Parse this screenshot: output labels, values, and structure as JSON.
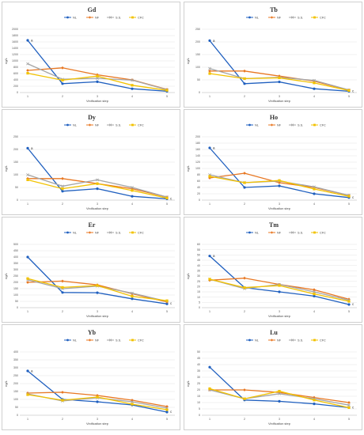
{
  "colors": {
    "NL": "#1f5fbf",
    "NF": "#e87722",
    "S.S.": "#a5a5a5",
    "CFC": "#f2c200"
  },
  "chart_data": [
    {
      "type": "line",
      "title": "Gd",
      "xlabel": "Vinification step",
      "ylabel": "ng/L",
      "x": [
        1,
        2,
        3,
        4,
        5
      ],
      "ylim": [
        0,
        2000
      ],
      "yticks": [
        0,
        200,
        400,
        600,
        800,
        1000,
        1200,
        1400,
        1600,
        1800,
        2000
      ],
      "series": [
        {
          "name": "NL",
          "values": [
            1650,
            280,
            340,
            120,
            40
          ]
        },
        {
          "name": "NF",
          "values": [
            700,
            780,
            560,
            400,
            100
          ]
        },
        {
          "name": "S.S.",
          "values": [
            910,
            420,
            450,
            390,
            90
          ]
        },
        {
          "name": "CFC",
          "values": [
            610,
            390,
            520,
            230,
            70
          ]
        }
      ],
      "significance": [
        "a",
        "",
        "",
        "",
        ""
      ]
    },
    {
      "type": "line",
      "title": "Tb",
      "xlabel": "Vinification step",
      "ylabel": "ng/L",
      "x": [
        1,
        2,
        3,
        4,
        5
      ],
      "ylim": [
        0,
        250
      ],
      "yticks": [
        0,
        50,
        100,
        150,
        200,
        250
      ],
      "series": [
        {
          "name": "NL",
          "values": [
            205,
            35,
            42,
            15,
            5
          ]
        },
        {
          "name": "NF",
          "values": [
            85,
            85,
            65,
            45,
            10
          ]
        },
        {
          "name": "S.S.",
          "values": [
            95,
            55,
            60,
            48,
            10
          ]
        },
        {
          "name": "CFC",
          "values": [
            75,
            55,
            58,
            38,
            8
          ]
        }
      ],
      "significance": [
        "a",
        "",
        "",
        "",
        "c"
      ]
    },
    {
      "type": "line",
      "title": "Dy",
      "xlabel": "Vinification step",
      "ylabel": "ng/L",
      "x": [
        1,
        2,
        3,
        4,
        5
      ],
      "ylim": [
        0,
        250
      ],
      "yticks": [
        0,
        50,
        100,
        150,
        200,
        250
      ],
      "series": [
        {
          "name": "NL",
          "values": [
            205,
            35,
            45,
            15,
            5
          ]
        },
        {
          "name": "NF",
          "values": [
            85,
            85,
            65,
            45,
            12
          ]
        },
        {
          "name": "S.S.",
          "values": [
            100,
            55,
            80,
            50,
            12
          ]
        },
        {
          "name": "CFC",
          "values": [
            80,
            45,
            65,
            38,
            8
          ]
        }
      ],
      "significance": [
        "a",
        "",
        "",
        "",
        "c"
      ]
    },
    {
      "type": "line",
      "title": "Ho",
      "xlabel": "Vinification step",
      "ylabel": "ng/L",
      "x": [
        1,
        2,
        3,
        4,
        5
      ],
      "ylim": [
        0,
        200
      ],
      "yticks": [
        0,
        20,
        40,
        60,
        80,
        100,
        120,
        140,
        160,
        180,
        200
      ],
      "series": [
        {
          "name": "NL",
          "values": [
            165,
            40,
            45,
            20,
            8
          ]
        },
        {
          "name": "NF",
          "values": [
            70,
            85,
            55,
            40,
            15
          ]
        },
        {
          "name": "S.S.",
          "values": [
            80,
            55,
            60,
            42,
            15
          ]
        },
        {
          "name": "CFC",
          "values": [
            75,
            55,
            62,
            35,
            12
          ]
        }
      ],
      "significance": [
        "a",
        "",
        "",
        "",
        "c"
      ]
    },
    {
      "type": "line",
      "title": "Er",
      "xlabel": "Vinification step",
      "ylabel": "ng/L",
      "x": [
        1,
        2,
        3,
        4,
        5
      ],
      "ylim": [
        0,
        500
      ],
      "yticks": [
        0,
        50,
        100,
        150,
        200,
        250,
        300,
        350,
        400,
        450,
        500
      ],
      "series": [
        {
          "name": "NL",
          "values": [
            400,
            120,
            118,
            70,
            30
          ]
        },
        {
          "name": "NF",
          "values": [
            200,
            210,
            180,
            110,
            45
          ]
        },
        {
          "name": "S.S.",
          "values": [
            220,
            150,
            170,
            115,
            50
          ]
        },
        {
          "name": "CFC",
          "values": [
            230,
            160,
            175,
            90,
            55
          ]
        }
      ],
      "significance": [
        "",
        "",
        "",
        "",
        "c"
      ]
    },
    {
      "type": "line",
      "title": "Tm",
      "xlabel": "Vinification step",
      "ylabel": "ng/L",
      "x": [
        1,
        2,
        3,
        4,
        5
      ],
      "ylim": [
        0,
        60
      ],
      "yticks": [
        0,
        5,
        10,
        15,
        20,
        25,
        30,
        35,
        40,
        45,
        50,
        55,
        60
      ],
      "series": [
        {
          "name": "NL",
          "values": [
            49,
            19,
            15,
            11,
            3
          ]
        },
        {
          "name": "NF",
          "values": [
            26,
            28,
            22,
            17,
            8
          ]
        },
        {
          "name": "S.S.",
          "values": [
            27,
            18,
            22,
            15,
            7
          ]
        },
        {
          "name": "CFC",
          "values": [
            27,
            19,
            21,
            13,
            6
          ]
        }
      ],
      "significance": [
        "a",
        "",
        "",
        "",
        "c"
      ]
    },
    {
      "type": "line",
      "title": "Yb",
      "xlabel": "Vinification step",
      "ylabel": "ng/L",
      "x": [
        1,
        2,
        3,
        4,
        5
      ],
      "ylim": [
        0,
        400
      ],
      "yticks": [
        0,
        50,
        100,
        150,
        200,
        250,
        300,
        350,
        400
      ],
      "series": [
        {
          "name": "NL",
          "values": [
            280,
            100,
            85,
            65,
            20
          ]
        },
        {
          "name": "NF",
          "values": [
            140,
            145,
            125,
            95,
            55
          ]
        },
        {
          "name": "S.S.",
          "values": [
            135,
            90,
            110,
            85,
            45
          ]
        },
        {
          "name": "CFC",
          "values": [
            130,
            95,
            115,
            70,
            35
          ]
        }
      ],
      "significance": [
        "a",
        "",
        "",
        "",
        "c"
      ]
    },
    {
      "type": "line",
      "title": "Lu",
      "xlabel": "Vinification step",
      "ylabel": "ng/L",
      "x": [
        1,
        2,
        3,
        4,
        5
      ],
      "ylim": [
        0,
        50
      ],
      "yticks": [
        0,
        5,
        10,
        15,
        20,
        25,
        30,
        35,
        40,
        45,
        50
      ],
      "series": [
        {
          "name": "NL",
          "values": [
            38,
            12,
            11,
            9,
            6
          ]
        },
        {
          "name": "NF",
          "values": [
            20,
            20,
            18,
            14,
            10
          ]
        },
        {
          "name": "S.S.",
          "values": [
            20,
            13,
            17,
            13,
            8
          ]
        },
        {
          "name": "CFC",
          "values": [
            21,
            13,
            19,
            12,
            6
          ]
        }
      ],
      "significance": [
        "",
        "",
        "",
        "",
        "c"
      ]
    }
  ]
}
